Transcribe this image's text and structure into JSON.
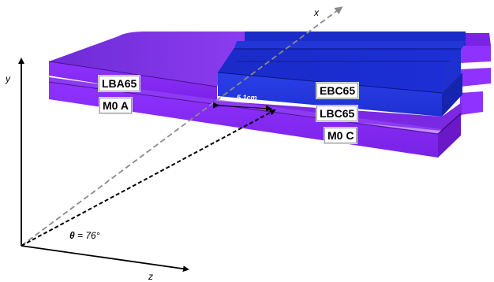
{
  "axes": {
    "x": "x",
    "y": "y",
    "z": "z"
  },
  "angle": {
    "symbol": "θ",
    "text": " = 76°"
  },
  "distance": "5.1cm",
  "modules": {
    "lba65": "LBA65",
    "m0a": "M0 A",
    "ebc65": "EBC65",
    "lbc65": "LBC65",
    "m0c": "M0 C"
  },
  "colors": {
    "purple_top": "#7a2ee0",
    "purple_face": "#8a2cf2",
    "blue_top": "#1c2acc",
    "blue_face": "#2a3fe6",
    "edge": "#3a0a78"
  }
}
